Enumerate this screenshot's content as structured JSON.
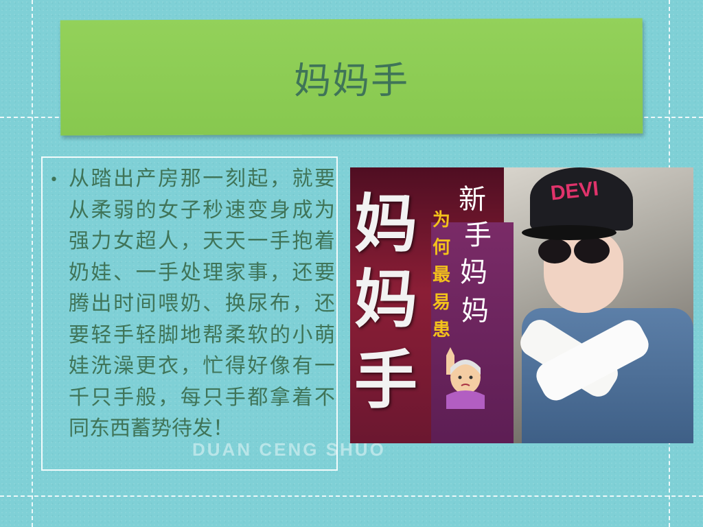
{
  "slide": {
    "title": "妈妈手",
    "bullet_symbol": "•",
    "body": "从踏出产房那一刻起，就要从柔弱的女子秒速变身成为强力女超人，天天一手抱着奶娃、一手处理家事，还要腾出时间喂奶、换尿布，还要轻手轻脚地帮柔软的小萌娃洗澡更衣，忙得好像有一千只手般，每只手都拿着不同东西蓄势待发！",
    "watermark": "DUAN CENG SHUO"
  },
  "photo": {
    "big_chars": [
      "妈",
      "妈",
      "手"
    ],
    "side_chars": [
      "新",
      "手",
      "妈",
      "妈"
    ],
    "yellow_chars": [
      "为",
      "何",
      "最",
      "易",
      "患"
    ],
    "cap_text": "DEVI",
    "emoji_icon": "woman-raising-hand-emoji"
  },
  "colors": {
    "background": "#7fd0d6",
    "title_band": "#8ccb52",
    "text": "#3f7458",
    "photo_bg": "#6a1f33",
    "accent_yellow": "#f3c21b",
    "cap_text": "#e0336b"
  }
}
